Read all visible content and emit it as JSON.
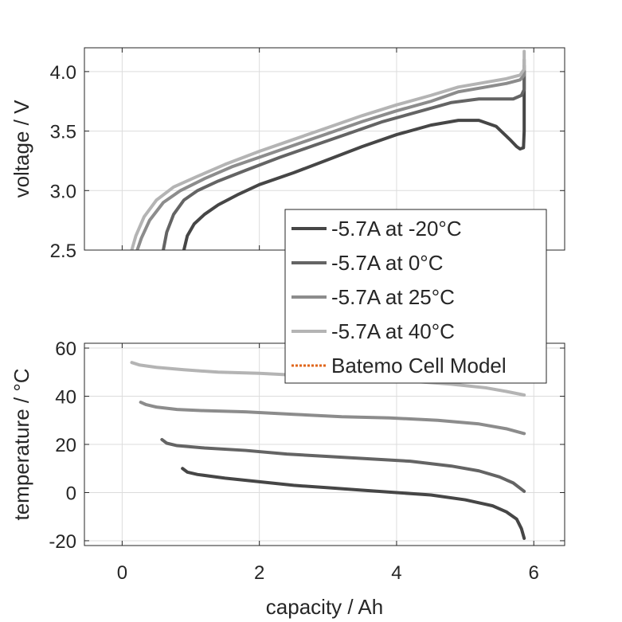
{
  "chart_data": [
    {
      "type": "line",
      "xlabel": "",
      "ylabel": "voltage / V",
      "xlim": [
        -0.55,
        6.45
      ],
      "ylim": [
        2.5,
        4.2
      ],
      "xticks": [
        0,
        2,
        4,
        6
      ],
      "show_xtick_labels": false,
      "yticks": [
        2.5,
        3.0,
        3.5,
        4.0
      ],
      "ytick_labels": [
        "2.5",
        "3.0",
        "3.5",
        "4.0"
      ],
      "grid": true,
      "series": [
        {
          "name": "-5.7A at -20°C",
          "color": "#464646",
          "x": [
            0.9,
            0.95,
            1.05,
            1.2,
            1.4,
            1.7,
            2.0,
            2.5,
            3.0,
            3.5,
            4.0,
            4.5,
            4.9,
            5.2,
            5.45,
            5.65,
            5.75,
            5.8,
            5.85,
            5.86,
            5.86
          ],
          "y": [
            2.5,
            2.62,
            2.72,
            2.8,
            2.88,
            2.97,
            3.05,
            3.15,
            3.26,
            3.37,
            3.47,
            3.55,
            3.59,
            3.59,
            3.54,
            3.43,
            3.37,
            3.35,
            3.36,
            3.5,
            4.0
          ]
        },
        {
          "name": "-5.7A at 0°C",
          "color": "#646464",
          "x": [
            0.6,
            0.65,
            0.75,
            0.9,
            1.1,
            1.4,
            1.8,
            2.3,
            2.8,
            3.3,
            3.8,
            4.3,
            4.8,
            5.2,
            5.5,
            5.7,
            5.82,
            5.86,
            5.86
          ],
          "y": [
            2.5,
            2.65,
            2.8,
            2.92,
            3.0,
            3.08,
            3.17,
            3.28,
            3.38,
            3.48,
            3.58,
            3.66,
            3.74,
            3.77,
            3.77,
            3.77,
            3.8,
            3.85,
            4.05
          ]
        },
        {
          "name": "-5.7A at 25°C",
          "color": "#8c8c8c",
          "x": [
            0.22,
            0.28,
            0.4,
            0.6,
            0.85,
            1.2,
            1.6,
            2.0,
            2.5,
            3.0,
            3.5,
            4.0,
            4.5,
            4.9,
            5.3,
            5.6,
            5.8,
            5.86,
            5.86
          ],
          "y": [
            2.5,
            2.6,
            2.75,
            2.9,
            3.0,
            3.1,
            3.2,
            3.28,
            3.38,
            3.48,
            3.58,
            3.67,
            3.75,
            3.83,
            3.87,
            3.9,
            3.93,
            3.97,
            4.1
          ]
        },
        {
          "name": "-5.7A at 40°C",
          "color": "#b4b4b4",
          "x": [
            0.14,
            0.2,
            0.32,
            0.5,
            0.75,
            1.1,
            1.5,
            2.0,
            2.5,
            3.0,
            3.5,
            4.0,
            4.5,
            4.9,
            5.3,
            5.6,
            5.8,
            5.86,
            5.86
          ],
          "y": [
            2.5,
            2.62,
            2.78,
            2.92,
            3.03,
            3.12,
            3.22,
            3.33,
            3.43,
            3.53,
            3.63,
            3.72,
            3.8,
            3.87,
            3.91,
            3.94,
            3.97,
            4.02,
            4.17
          ]
        }
      ]
    },
    {
      "type": "line",
      "xlabel": "capacity / Ah",
      "ylabel": "temperature / °C",
      "xlim": [
        -0.55,
        6.45
      ],
      "ylim": [
        -22,
        62
      ],
      "xticks": [
        0,
        2,
        4,
        6
      ],
      "xtick_labels": [
        "0",
        "2",
        "4",
        "6"
      ],
      "yticks": [
        -20,
        0,
        20,
        40,
        60
      ],
      "ytick_labels": [
        "-20",
        "0",
        "20",
        "40",
        "60"
      ],
      "grid": true,
      "series": [
        {
          "name": "-5.7A at -20°C",
          "color": "#464646",
          "x": [
            0.88,
            0.95,
            1.1,
            1.5,
            2.0,
            2.5,
            3.0,
            3.5,
            4.0,
            4.5,
            5.0,
            5.4,
            5.6,
            5.75,
            5.82,
            5.86
          ],
          "y": [
            10,
            8.5,
            7.5,
            6,
            4.5,
            3,
            2,
            1,
            0,
            -1,
            -3,
            -5.5,
            -8,
            -11,
            -15,
            -19
          ]
        },
        {
          "name": "-5.7A at 0°C",
          "color": "#646464",
          "x": [
            0.58,
            0.65,
            0.8,
            1.2,
            1.8,
            2.4,
            3.0,
            3.6,
            4.2,
            4.8,
            5.2,
            5.5,
            5.7,
            5.86
          ],
          "y": [
            22,
            20.5,
            19.5,
            18.5,
            17.5,
            16,
            15,
            14,
            13,
            11,
            9,
            6.5,
            4,
            0.5
          ]
        },
        {
          "name": "-5.7A at 25°C",
          "color": "#8c8c8c",
          "x": [
            0.27,
            0.35,
            0.5,
            0.8,
            1.2,
            1.8,
            2.5,
            3.2,
            3.9,
            4.6,
            5.2,
            5.6,
            5.86
          ],
          "y": [
            37.5,
            36.5,
            35.5,
            34.5,
            34,
            33.5,
            32.5,
            31.5,
            31,
            30,
            28.5,
            26.5,
            24.5
          ]
        },
        {
          "name": "-5.7A at 40°C",
          "color": "#b4b4b4",
          "x": [
            0.14,
            0.25,
            0.5,
            0.9,
            1.4,
            2.0,
            2.7,
            3.4,
            4.1,
            4.8,
            5.3,
            5.6,
            5.86
          ],
          "y": [
            54,
            53,
            52,
            51,
            50,
            49.5,
            48.5,
            47.5,
            46.5,
            45,
            43.5,
            42,
            40.5
          ]
        }
      ]
    }
  ],
  "legend": {
    "placement": "between the two panels, right side",
    "entries": [
      {
        "label": "-5.7A at -20°C",
        "color": "#464646",
        "style": "solid"
      },
      {
        "label": "-5.7A at 0°C",
        "color": "#646464",
        "style": "solid"
      },
      {
        "label": "-5.7A at 25°C",
        "color": "#8c8c8c",
        "style": "solid"
      },
      {
        "label": "-5.7A at 40°C",
        "color": "#b4b4b4",
        "style": "solid"
      },
      {
        "label": "Batemo Cell Model",
        "color": "#e0661a",
        "style": "dotted"
      }
    ]
  }
}
